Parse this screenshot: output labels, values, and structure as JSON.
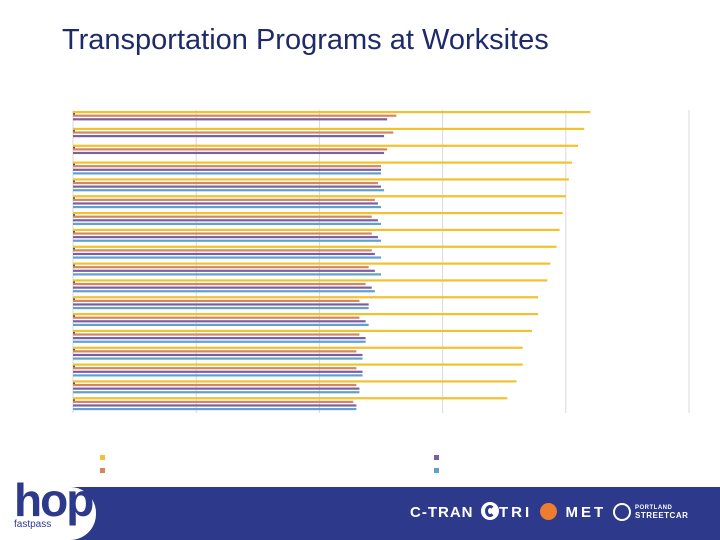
{
  "header": {
    "title": "Transportation Programs at Worksites"
  },
  "colors": {
    "series1": "#f2c12e",
    "series2": "#d3875a",
    "series3": "#7d5ea3",
    "series4": "#5fa0cf",
    "gridline": "#d9d9d9",
    "footer_bg": "#2d3a8c"
  },
  "chart_data": {
    "type": "bar",
    "orientation": "horizontal",
    "categories": [
      "",
      "",
      "",
      "",
      "",
      "",
      "",
      "",
      "",
      "",
      "",
      "",
      "",
      "",
      "",
      "",
      "",
      ""
    ],
    "series": [
      {
        "values": [
          84,
          83,
          82,
          81,
          80.5,
          80,
          79.5,
          79,
          78.5,
          77.5,
          77,
          75.5,
          75.5,
          74.5,
          73,
          73,
          72,
          70.5
        ]
      },
      {
        "values": [
          52.5,
          52,
          51,
          50,
          49.5,
          49,
          48.5,
          48.5,
          48.5,
          48,
          47.5,
          46.5,
          46.5,
          46.5,
          46,
          46,
          46,
          45.5
        ]
      },
      {
        "values": [
          51,
          50.5,
          50.5,
          50,
          50,
          49.5,
          49.5,
          49.5,
          49,
          49,
          48.5,
          48,
          47.5,
          47.5,
          47,
          47,
          46.5,
          46
        ]
      },
      {
        "values": [
          0,
          0,
          0,
          50,
          50.5,
          50,
          50,
          50,
          50,
          50,
          49,
          48,
          48,
          47.5,
          47,
          47,
          46.5,
          46
        ]
      }
    ],
    "xlim": [
      0,
      100
    ],
    "grid": true,
    "legend_position": "bottom"
  },
  "footer": {
    "logo_text": "hop",
    "logo_sub": "fastpass",
    "partners": {
      "ctran": "C-TRAN",
      "trimet_left": "TRI",
      "trimet_right": "MET",
      "streetcar_top": "PORTLAND",
      "streetcar_bottom": "STREETCAR"
    }
  }
}
